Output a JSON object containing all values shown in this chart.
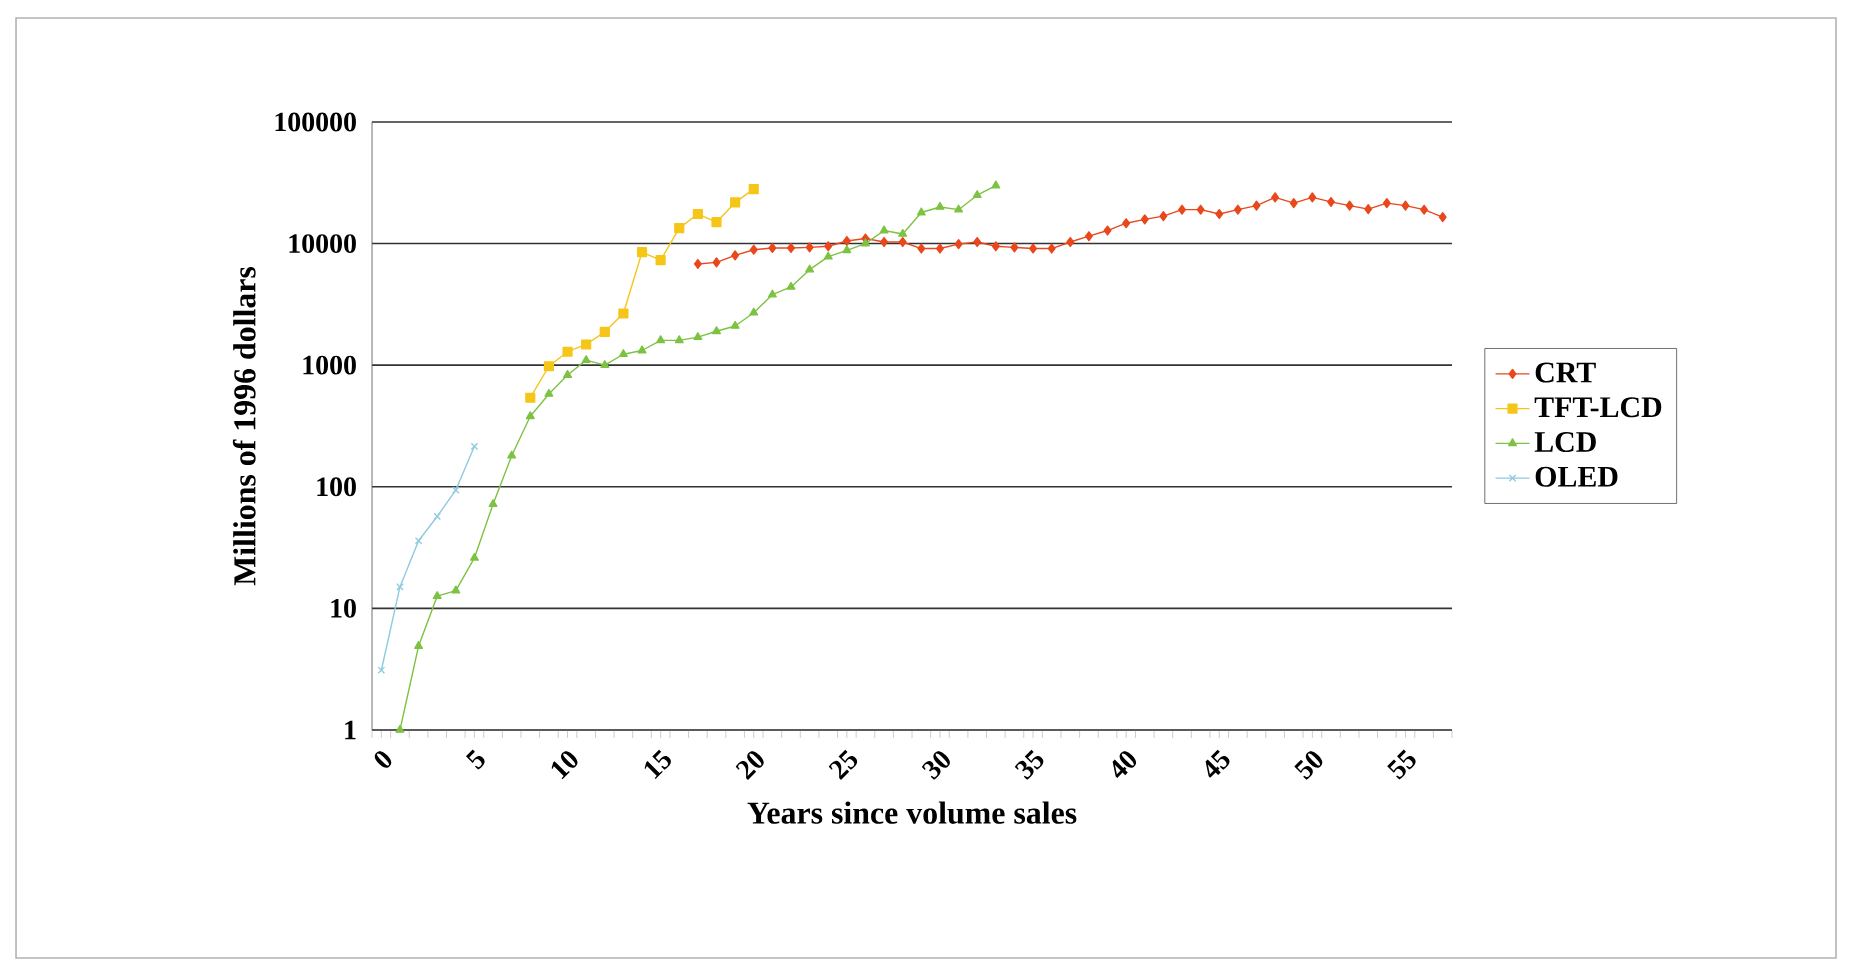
{
  "chart_data": {
    "type": "line",
    "xlabel": "Years since volume sales",
    "ylabel": "Millions of 1996 dollars",
    "log": "y",
    "grid": "y",
    "legend": "right",
    "xlim": [
      -0.5,
      57.5
    ],
    "xticks": [
      0,
      5,
      10,
      15,
      20,
      25,
      30,
      35,
      40,
      45,
      50,
      55
    ],
    "ylim": [
      1,
      100000
    ],
    "yticks": [
      1,
      10,
      100,
      1000,
      10000,
      100000
    ],
    "series": [
      {
        "name": "CRT",
        "color": "#e8481c",
        "marker": "diamond",
        "x": [
          17,
          18,
          19,
          20,
          21,
          22,
          23,
          24,
          25,
          26,
          27,
          28,
          29,
          30,
          31,
          32,
          33,
          34,
          35,
          36,
          37,
          38,
          39,
          40,
          41,
          42,
          43,
          44,
          45,
          46,
          47,
          48,
          49,
          50,
          51,
          52,
          53,
          54,
          55,
          56,
          57
        ],
        "values": [
          6800,
          7000,
          8000,
          8900,
          9200,
          9200,
          9300,
          9500,
          10500,
          11000,
          10300,
          10300,
          9100,
          9100,
          9900,
          10300,
          9500,
          9300,
          9100,
          9100,
          10300,
          11500,
          12800,
          14700,
          15800,
          16800,
          19000,
          19000,
          17500,
          19000,
          20500,
          24000,
          21500,
          24000,
          22000,
          20500,
          19200,
          21500,
          20500,
          19000,
          16500
        ]
      },
      {
        "name": "TFT-LCD",
        "color": "#f5c518",
        "marker": "square",
        "x": [
          8,
          9,
          10,
          11,
          12,
          13,
          14,
          15,
          16,
          17,
          18,
          19,
          20
        ],
        "values": [
          540,
          980,
          1290,
          1480,
          1880,
          2660,
          8500,
          7300,
          13400,
          17500,
          15000,
          21800,
          28000
        ]
      },
      {
        "name": "LCD",
        "color": "#7dc242",
        "marker": "triangle",
        "x": [
          1,
          2,
          3,
          4,
          5,
          6,
          7,
          8,
          9,
          10,
          11,
          12,
          13,
          14,
          15,
          16,
          17,
          18,
          19,
          20,
          21,
          22,
          23,
          24,
          25,
          26,
          27,
          28,
          29,
          30,
          31,
          32,
          33
        ],
        "values": [
          1,
          4.9,
          12.6,
          14,
          26,
          72,
          180,
          380,
          580,
          830,
          1100,
          1000,
          1230,
          1320,
          1600,
          1600,
          1700,
          1900,
          2100,
          2700,
          3800,
          4400,
          6100,
          7800,
          8800,
          10000,
          12800,
          12000,
          18000,
          20000,
          19000,
          25000,
          30000
        ]
      },
      {
        "name": "OLED",
        "color": "#8ecae0",
        "marker": "cross",
        "x": [
          0,
          1,
          2,
          3,
          4,
          5
        ],
        "values": [
          3.1,
          15,
          36,
          57,
          94,
          215
        ]
      }
    ]
  }
}
